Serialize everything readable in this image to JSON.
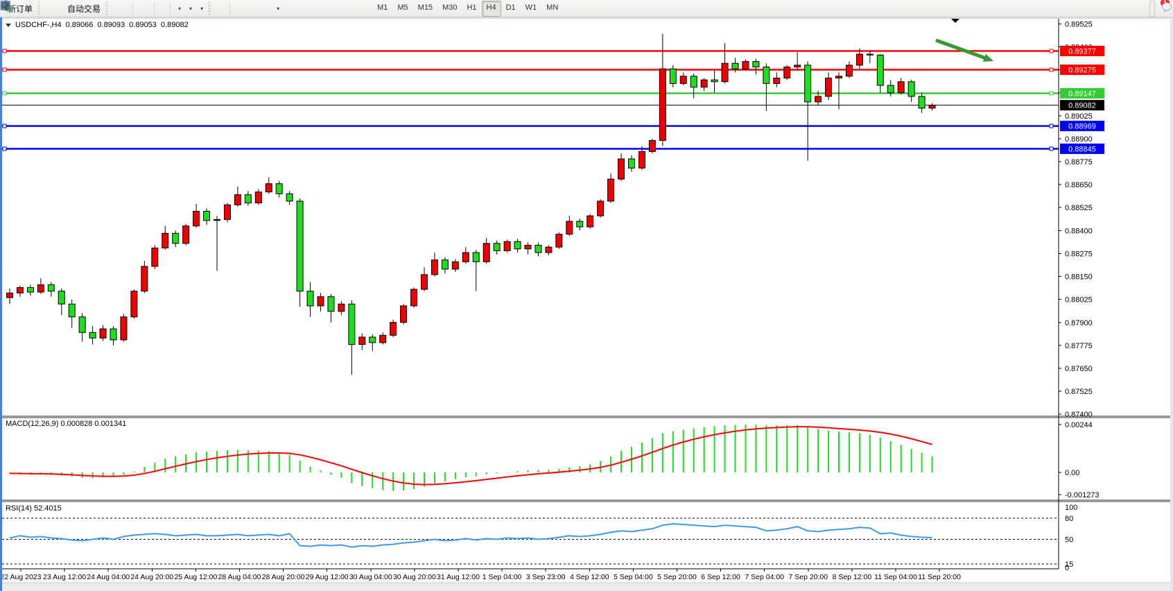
{
  "toolbar": {
    "new_order_label": "新订单",
    "autotrade_label": "自动交易",
    "icons": [
      "new-order-icon",
      "gold-ingot-icon",
      "terminal-icon",
      "signal-icon",
      "autotrade-icon",
      "bar-chart-icon",
      "candlestick-chart-icon",
      "line-chart-icon",
      "zoom-in-icon",
      "zoom-out-icon",
      "tile-windows-icon",
      "scroll-chart-icon",
      "chart-shift-icon",
      "add-indicator-icon",
      "periods-clock-icon",
      "template-icon",
      "cursor-icon",
      "crosshair-icon",
      "vertical-line-icon",
      "horizontal-line-icon",
      "trendline-icon",
      "channel-icon",
      "fibonacci-icon",
      "text-icon",
      "text-label-icon",
      "arrows-tool-icon",
      "search-icon",
      "chat-icon"
    ],
    "timeframes": [
      "M1",
      "M5",
      "M15",
      "M30",
      "H1",
      "H4",
      "D1",
      "W1",
      "MN"
    ],
    "selected_timeframe": "H4",
    "notification_count": "1"
  },
  "chart": {
    "symbol": "USDCHF-,H4",
    "ohlc": {
      "open": "0.89066",
      "high": "0.89093",
      "low": "0.89053",
      "close": "0.89082"
    }
  },
  "macd_panel": {
    "label": "MACD(12,26,9)",
    "values": "0.000828 0.001341",
    "axis_labels": [
      "0.00244",
      "0.00",
      "-0.001273"
    ]
  },
  "rsi_panel": {
    "label": "RSI(14)",
    "value": "52.4015",
    "axis_labels": [
      "100",
      "80",
      "50",
      "15",
      "0"
    ]
  },
  "chart_data": {
    "type": "candlestick",
    "symbol": "USDCHF",
    "period": "H4",
    "color_convention": "chinese (red = up, green = down)",
    "up_color": "#f20000",
    "down_color": "#1fdd1f",
    "line_colors": {
      "resistance": "#ff0000",
      "pivot": "#33cc33",
      "support": "#0000ff",
      "current": "#000000"
    },
    "price_range": [
      0.874,
      0.89525
    ],
    "price_axis_ticks": [
      "0.89525",
      "0.89400",
      "0.89275",
      "0.89150",
      "0.89025",
      "0.88900",
      "0.88775",
      "0.88650",
      "0.88525",
      "0.88400",
      "0.88275",
      "0.88150",
      "0.88025",
      "0.87900",
      "0.87775",
      "0.87650",
      "0.87525",
      "0.87400"
    ],
    "time_axis_ticks": [
      "22 Aug 2023",
      "23 Aug 12:00",
      "24 Aug 04:00",
      "24 Aug 20:00",
      "25 Aug 12:00",
      "28 Aug 04:00",
      "28 Aug 20:00",
      "29 Aug 12:00",
      "30 Aug 04:00",
      "30 Aug 20:00",
      "31 Aug 12:00",
      "1 Sep 04:00",
      "3 Sep 23:00",
      "4 Sep 12:00",
      "5 Sep 04:00",
      "5 Sep 20:00",
      "6 Sep 12:00",
      "7 Sep 04:00",
      "7 Sep 20:00",
      "8 Sep 12:00",
      "11 Sep 04:00",
      "11 Sep 20:00"
    ],
    "hlines": [
      {
        "price": 0.89377,
        "color": "#ff0000",
        "width": 2.5
      },
      {
        "price": 0.89275,
        "color": "#ff0000",
        "width": 2.5
      },
      {
        "price": 0.89147,
        "color": "#33cc33",
        "width": 2.5
      },
      {
        "price": 0.89082,
        "color": "#000000",
        "width": 1,
        "current": true
      },
      {
        "price": 0.88969,
        "color": "#0000ff",
        "width": 2.5
      },
      {
        "price": 0.88845,
        "color": "#0000ff",
        "width": 2.5
      }
    ],
    "annotation_arrow": {
      "from": [
        1350,
        58
      ],
      "to": [
        1433,
        88
      ],
      "color": "#339933"
    },
    "candles": [
      [
        0.88035,
        0.88085,
        0.88,
        0.8806
      ],
      [
        0.8806,
        0.881,
        0.8804,
        0.8809
      ],
      [
        0.8809,
        0.88105,
        0.88045,
        0.88065
      ],
      [
        0.88065,
        0.8814,
        0.88055,
        0.88105
      ],
      [
        0.88105,
        0.8812,
        0.8804,
        0.8807
      ],
      [
        0.8807,
        0.88085,
        0.8794,
        0.88
      ],
      [
        0.88,
        0.88025,
        0.8787,
        0.8793
      ],
      [
        0.8793,
        0.8795,
        0.87795,
        0.87845
      ],
      [
        0.87845,
        0.8788,
        0.8778,
        0.87815
      ],
      [
        0.87815,
        0.87885,
        0.878,
        0.87865
      ],
      [
        0.87865,
        0.8788,
        0.87775,
        0.87805
      ],
      [
        0.87805,
        0.87945,
        0.87795,
        0.8793
      ],
      [
        0.8793,
        0.8808,
        0.8792,
        0.8807
      ],
      [
        0.8807,
        0.88235,
        0.8806,
        0.88205
      ],
      [
        0.88205,
        0.8832,
        0.8819,
        0.88305
      ],
      [
        0.88305,
        0.88425,
        0.88295,
        0.88385
      ],
      [
        0.88385,
        0.884,
        0.8831,
        0.8833
      ],
      [
        0.8833,
        0.88435,
        0.8832,
        0.88425
      ],
      [
        0.88425,
        0.88545,
        0.88415,
        0.88505
      ],
      [
        0.88505,
        0.8852,
        0.8843,
        0.88455
      ],
      [
        0.88455,
        0.8848,
        0.8818,
        0.8846
      ],
      [
        0.8846,
        0.8855,
        0.88445,
        0.8854
      ],
      [
        0.8854,
        0.8864,
        0.8853,
        0.88595
      ],
      [
        0.88595,
        0.88615,
        0.88535,
        0.8855
      ],
      [
        0.8855,
        0.88625,
        0.8854,
        0.8861
      ],
      [
        0.8861,
        0.8869,
        0.886,
        0.88655
      ],
      [
        0.88655,
        0.8867,
        0.8858,
        0.886
      ],
      [
        0.886,
        0.88615,
        0.8854,
        0.8856
      ],
      [
        0.8856,
        0.88575,
        0.87985,
        0.8807
      ],
      [
        0.8807,
        0.8812,
        0.8793,
        0.8799
      ],
      [
        0.8799,
        0.8806,
        0.8796,
        0.8804
      ],
      [
        0.8804,
        0.88055,
        0.879,
        0.8796
      ],
      [
        0.8796,
        0.88015,
        0.8794,
        0.88
      ],
      [
        0.88,
        0.8802,
        0.87615,
        0.8778
      ],
      [
        0.8778,
        0.8784,
        0.8775,
        0.8782
      ],
      [
        0.8782,
        0.87835,
        0.87745,
        0.8779
      ],
      [
        0.8779,
        0.87845,
        0.8778,
        0.8783
      ],
      [
        0.8783,
        0.87915,
        0.8782,
        0.879
      ],
      [
        0.879,
        0.88,
        0.8789,
        0.8799
      ],
      [
        0.8799,
        0.8809,
        0.8798,
        0.8808
      ],
      [
        0.8808,
        0.882,
        0.8807,
        0.8816
      ],
      [
        0.8816,
        0.8828,
        0.8815,
        0.8824
      ],
      [
        0.8824,
        0.88255,
        0.88165,
        0.8819
      ],
      [
        0.8819,
        0.88245,
        0.88175,
        0.8823
      ],
      [
        0.8823,
        0.8831,
        0.8822,
        0.8828
      ],
      [
        0.8828,
        0.88295,
        0.8807,
        0.8823
      ],
      [
        0.8823,
        0.8836,
        0.8822,
        0.8833
      ],
      [
        0.8833,
        0.88345,
        0.8827,
        0.8829
      ],
      [
        0.8829,
        0.8835,
        0.8828,
        0.8834
      ],
      [
        0.8834,
        0.88355,
        0.8828,
        0.883
      ],
      [
        0.883,
        0.88335,
        0.8827,
        0.8832
      ],
      [
        0.8832,
        0.88335,
        0.8826,
        0.8828
      ],
      [
        0.8828,
        0.8832,
        0.88265,
        0.8831
      ],
      [
        0.8831,
        0.8839,
        0.883,
        0.8838
      ],
      [
        0.8838,
        0.8848,
        0.8837,
        0.8845
      ],
      [
        0.8845,
        0.88465,
        0.884,
        0.8842
      ],
      [
        0.8842,
        0.8849,
        0.8841,
        0.8848
      ],
      [
        0.8848,
        0.8857,
        0.8847,
        0.8856
      ],
      [
        0.8856,
        0.8871,
        0.8855,
        0.8868
      ],
      [
        0.8868,
        0.8882,
        0.8867,
        0.8879
      ],
      [
        0.8879,
        0.8881,
        0.8872,
        0.8874
      ],
      [
        0.8874,
        0.8886,
        0.8873,
        0.8883
      ],
      [
        0.8883,
        0.889,
        0.8882,
        0.8889
      ],
      [
        0.8889,
        0.8947,
        0.8886,
        0.8928
      ],
      [
        0.8928,
        0.893,
        0.8918,
        0.892
      ],
      [
        0.892,
        0.8926,
        0.8919,
        0.8924
      ],
      [
        0.8924,
        0.89255,
        0.8912,
        0.8918
      ],
      [
        0.8918,
        0.8923,
        0.8916,
        0.8922
      ],
      [
        0.8922,
        0.8927,
        0.8915,
        0.8921
      ],
      [
        0.8921,
        0.8942,
        0.892,
        0.8931
      ],
      [
        0.8931,
        0.8934,
        0.8926,
        0.8928
      ],
      [
        0.8928,
        0.8933,
        0.8927,
        0.8932
      ],
      [
        0.8932,
        0.89335,
        0.8925,
        0.8929
      ],
      [
        0.8929,
        0.8931,
        0.8905,
        0.892
      ],
      [
        0.892,
        0.8926,
        0.8918,
        0.8923
      ],
      [
        0.8923,
        0.893,
        0.8922,
        0.8929
      ],
      [
        0.8929,
        0.8937,
        0.8927,
        0.893
      ],
      [
        0.893,
        0.8932,
        0.8878,
        0.891
      ],
      [
        0.891,
        0.8916,
        0.8908,
        0.8913
      ],
      [
        0.8913,
        0.8926,
        0.8911,
        0.8923
      ],
      [
        0.8923,
        0.8926,
        0.8906,
        0.8924
      ],
      [
        0.8924,
        0.8932,
        0.8923,
        0.893
      ],
      [
        0.893,
        0.8939,
        0.8928,
        0.8936
      ],
      [
        0.8936,
        0.8938,
        0.8931,
        0.89355
      ],
      [
        0.89355,
        0.8936,
        0.8915,
        0.8919
      ],
      [
        0.8919,
        0.8922,
        0.8913,
        0.8915
      ],
      [
        0.8915,
        0.8923,
        0.8914,
        0.8921
      ],
      [
        0.8921,
        0.8922,
        0.891,
        0.8913
      ],
      [
        0.8913,
        0.8915,
        0.8904,
        0.89066
      ],
      [
        0.89066,
        0.89093,
        0.89053,
        0.89082
      ]
    ],
    "macd": {
      "parameters": "12,26,9",
      "current_macd": 0.000828,
      "current_signal": 0.001341,
      "axis_max": 0.00244,
      "axis_min": -0.001273,
      "histogram": [
        -5e-05,
        -8e-05,
        -0.0001,
        -0.0001,
        -0.00012,
        -0.00016,
        -0.00022,
        -0.00028,
        -0.0003,
        -0.00026,
        -0.00022,
        -0.00012,
        5e-05,
        0.00028,
        0.0005,
        0.0007,
        0.00082,
        0.00092,
        0.00102,
        0.00106,
        0.0011,
        0.00113,
        0.00115,
        0.00112,
        0.0011,
        0.00108,
        0.001,
        0.00088,
        0.0006,
        0.0003,
        0.0001,
        -0.00012,
        -0.00028,
        -0.00055,
        -0.0007,
        -0.00082,
        -0.0009,
        -0.00094,
        -0.00092,
        -0.00085,
        -0.00072,
        -0.00055,
        -0.00045,
        -0.00035,
        -0.00025,
        -0.0002,
        -0.0001,
        -5e-05,
        2e-05,
        6e-05,
        0.0001,
        0.00012,
        0.00014,
        0.00018,
        0.00026,
        0.00032,
        0.00042,
        0.00058,
        0.00082,
        0.0011,
        0.0013,
        0.00152,
        0.00175,
        0.002,
        0.0021,
        0.00218,
        0.00224,
        0.0023,
        0.00236,
        0.0024,
        0.00242,
        0.00244,
        0.00243,
        0.00241,
        0.0024,
        0.00241,
        0.0024,
        0.00232,
        0.00222,
        0.00214,
        0.00208,
        0.00204,
        0.002,
        0.00192,
        0.00178,
        0.0016,
        0.0014,
        0.0012,
        0.001,
        0.00083
      ]
    },
    "rsi": {
      "period": 14,
      "current": 52.4015,
      "levels": [
        80,
        50,
        15
      ],
      "range": [
        0,
        100
      ],
      "values": [
        52,
        55,
        53,
        54,
        52,
        51,
        49,
        48,
        50,
        52,
        50,
        54,
        56,
        57,
        58,
        57,
        55,
        56,
        57,
        55,
        55,
        56,
        57,
        55,
        56,
        57,
        55,
        58,
        41,
        40,
        42,
        41,
        42,
        39,
        41,
        40,
        42,
        43,
        45,
        46,
        48,
        50,
        48,
        49,
        51,
        49,
        51,
        50,
        52,
        51,
        52,
        50,
        51,
        53,
        55,
        54,
        55,
        57,
        60,
        62,
        61,
        63,
        65,
        70,
        72,
        71,
        70,
        69,
        68,
        70,
        69,
        68,
        67,
        62,
        63,
        65,
        68,
        62,
        61,
        63,
        64,
        65,
        67,
        66,
        58,
        59,
        56,
        54,
        53,
        52.4
      ]
    }
  }
}
